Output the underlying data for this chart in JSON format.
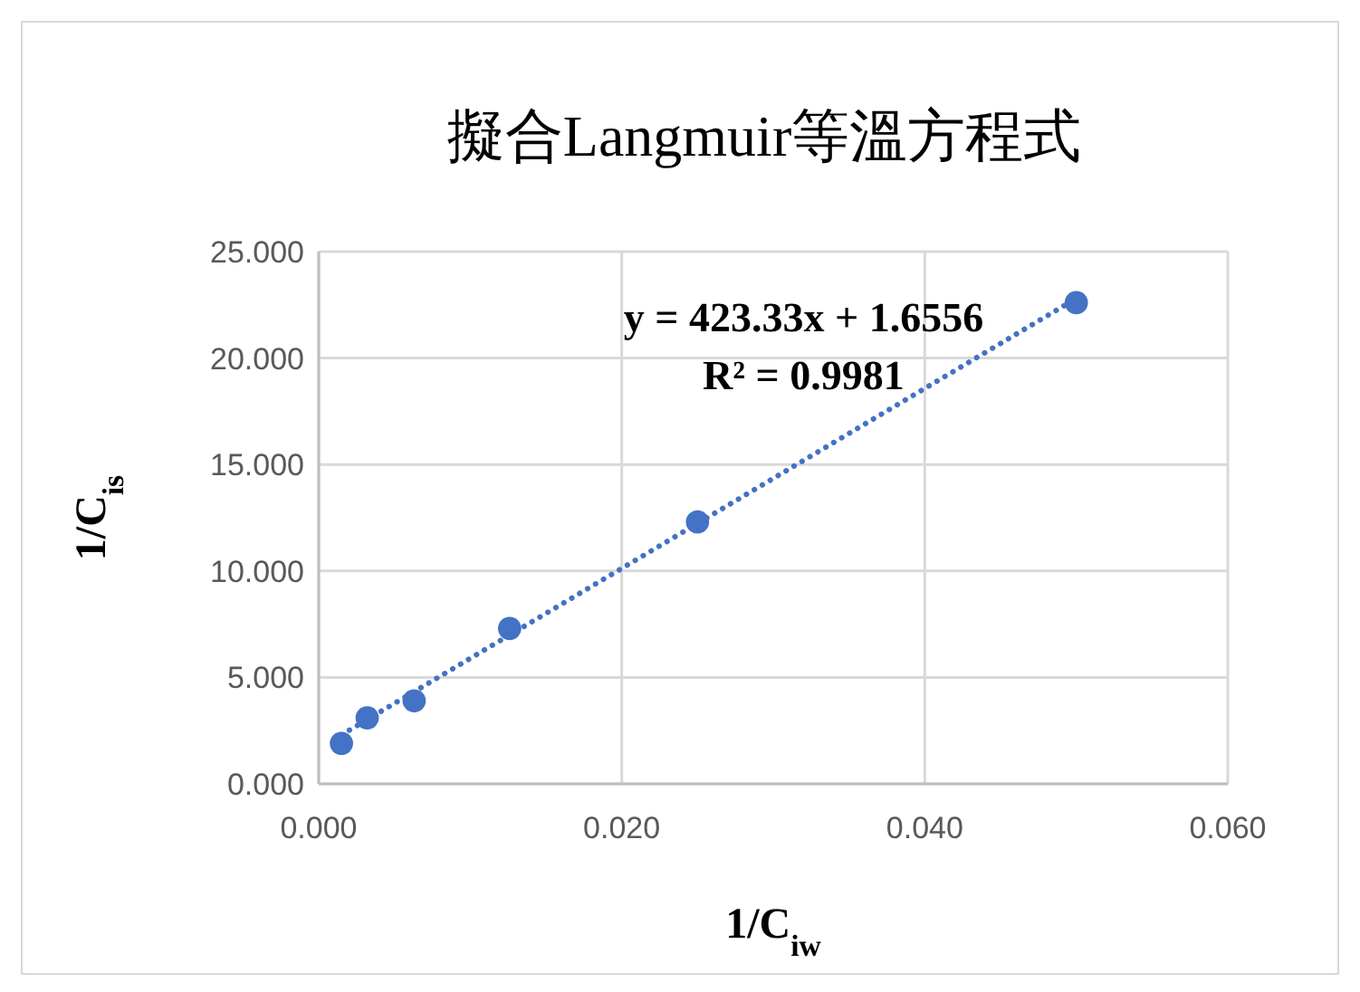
{
  "chart_data": {
    "type": "scatter",
    "title": "擬合Langmuir等溫方程式",
    "xlabel": "1/C$_{iw}$",
    "ylabel": "1/C$_{is}$",
    "annotations": [
      "y = 423.33x + 1.6556",
      "R² = 0.9981"
    ],
    "series": [
      {
        "type": "scatter",
        "color": "#4472c4",
        "marker": "circle",
        "x": [
          0.0015,
          0.0032,
          0.0063,
          0.0126,
          0.025,
          0.05
        ],
        "values": [
          1.9,
          3.1,
          3.9,
          7.3,
          12.3,
          22.6
        ]
      },
      {
        "type": "line",
        "color": "#4472c4",
        "line_style": "dotted",
        "x": [
          0.0015,
          0.05
        ],
        "values": [
          2.3,
          22.8
        ]
      }
    ],
    "xlim": [
      0,
      0.06
    ],
    "xticks": [
      {
        "value": 0,
        "label": "0.000"
      },
      {
        "value": 0.02,
        "label": "0.020"
      },
      {
        "value": 0.04,
        "label": "0.040"
      },
      {
        "value": 0.06,
        "label": "0.060"
      }
    ],
    "ylim": [
      0,
      25
    ],
    "yticks": [
      {
        "value": 0,
        "label": "0.000"
      },
      {
        "value": 5,
        "label": "5.000"
      },
      {
        "value": 10,
        "label": "10.000"
      },
      {
        "value": 15,
        "label": "15.000"
      },
      {
        "value": 20,
        "label": "20.000"
      },
      {
        "value": 25,
        "label": "25.000"
      }
    ],
    "grid": true
  }
}
